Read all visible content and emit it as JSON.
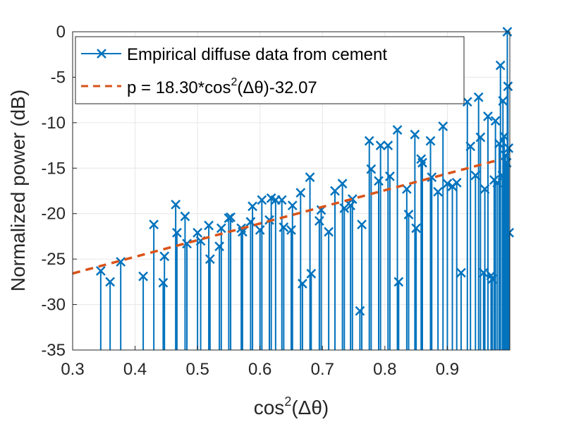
{
  "chart_data": {
    "type": "stem",
    "xlabel_prefix": "cos",
    "xlabel_sup": "2",
    "xlabel_suffix": "(Δθ)",
    "ylabel": "Normalized power (dB)",
    "xlim": [
      0.3,
      1.0
    ],
    "ylim": [
      -35,
      0
    ],
    "baseline": -35,
    "grid": true,
    "xticks": [
      0.3,
      0.4,
      0.5,
      0.6,
      0.7,
      0.8,
      0.9
    ],
    "yticks": [
      0,
      -5,
      -10,
      -15,
      -20,
      -25,
      -30,
      -35
    ],
    "xtick_labels": [
      "0.3",
      "0.4",
      "0.5",
      "0.6",
      "0.7",
      "0.8",
      "0.9"
    ],
    "ytick_labels": [
      "0",
      "-5",
      "-10",
      "-15",
      "-20",
      "-25",
      "-30",
      "-35"
    ],
    "legend": {
      "position": "top-left",
      "entries": [
        {
          "label": "Empirical diffuse data from cement"
        },
        {
          "label_prefix": "p = 18.30*cos",
          "label_sup": "2",
          "label_suffix": "(Δθ)-32.07"
        }
      ]
    },
    "series": [
      {
        "name": "Empirical diffuse data from cement",
        "style": "stem",
        "marker": "x",
        "color": "#0072BD",
        "points": [
          [
            0.345,
            -26.3
          ],
          [
            0.36,
            -27.5
          ],
          [
            0.377,
            -25.3
          ],
          [
            0.413,
            -26.9
          ],
          [
            0.43,
            -21.2
          ],
          [
            0.445,
            -27.6
          ],
          [
            0.447,
            -24.7
          ],
          [
            0.465,
            -19.0
          ],
          [
            0.467,
            -22.1
          ],
          [
            0.48,
            -20.3
          ],
          [
            0.483,
            -23.3
          ],
          [
            0.5,
            -22.1
          ],
          [
            0.505,
            -23.0
          ],
          [
            0.518,
            -21.3
          ],
          [
            0.52,
            -25.0
          ],
          [
            0.535,
            -23.6
          ],
          [
            0.538,
            -21.6
          ],
          [
            0.55,
            -20.5
          ],
          [
            0.553,
            -20.4
          ],
          [
            0.57,
            -21.6
          ],
          [
            0.572,
            -22.0
          ],
          [
            0.585,
            -20.9
          ],
          [
            0.588,
            -19.2
          ],
          [
            0.6,
            -21.8
          ],
          [
            0.603,
            -18.5
          ],
          [
            0.615,
            -20.7
          ],
          [
            0.618,
            -18.3
          ],
          [
            0.625,
            -18.5
          ],
          [
            0.635,
            -18.5
          ],
          [
            0.638,
            -21.5
          ],
          [
            0.65,
            -21.8
          ],
          [
            0.652,
            -19.1
          ],
          [
            0.665,
            -17.7
          ],
          [
            0.668,
            -27.7
          ],
          [
            0.68,
            -16.0
          ],
          [
            0.682,
            -26.6
          ],
          [
            0.695,
            -20.8
          ],
          [
            0.698,
            -19.6
          ],
          [
            0.71,
            -22.0
          ],
          [
            0.72,
            -17.5
          ],
          [
            0.732,
            -16.7
          ],
          [
            0.735,
            -19.4
          ],
          [
            0.745,
            -19.1
          ],
          [
            0.748,
            -18.4
          ],
          [
            0.76,
            -30.7
          ],
          [
            0.763,
            -21.2
          ],
          [
            0.775,
            -12.0
          ],
          [
            0.778,
            -15.1
          ],
          [
            0.79,
            -16.4
          ],
          [
            0.793,
            -12.5
          ],
          [
            0.805,
            -12.5
          ],
          [
            0.808,
            -15.9
          ],
          [
            0.82,
            -10.8
          ],
          [
            0.822,
            -27.5
          ],
          [
            0.835,
            -17.3
          ],
          [
            0.838,
            -20.1
          ],
          [
            0.848,
            -11.3
          ],
          [
            0.85,
            -21.6
          ],
          [
            0.858,
            -14.0
          ],
          [
            0.86,
            -14.4
          ],
          [
            0.873,
            -12.0
          ],
          [
            0.875,
            -16.0
          ],
          [
            0.885,
            -17.6
          ],
          [
            0.893,
            -10.4
          ],
          [
            0.9,
            -16.7
          ],
          [
            0.908,
            -17.0
          ],
          [
            0.915,
            -16.6
          ],
          [
            0.922,
            -26.5
          ],
          [
            0.932,
            -7.7
          ],
          [
            0.937,
            -12.6
          ],
          [
            0.945,
            -15.8
          ],
          [
            0.95,
            -7.2
          ],
          [
            0.953,
            -11.6
          ],
          [
            0.958,
            -26.5
          ],
          [
            0.96,
            -17.3
          ],
          [
            0.965,
            -9.3
          ],
          [
            0.97,
            -26.8
          ],
          [
            0.972,
            -27.2
          ],
          [
            0.975,
            -16.3
          ],
          [
            0.977,
            -9.8
          ],
          [
            0.98,
            -16.6
          ],
          [
            0.983,
            -12.3
          ],
          [
            0.985,
            -3.7
          ],
          [
            0.988,
            -15.8
          ],
          [
            0.989,
            -7.6
          ],
          [
            0.991,
            -11.5
          ],
          [
            0.993,
            -13.6
          ],
          [
            0.995,
            -14.4
          ],
          [
            0.996,
            0.0
          ],
          [
            0.997,
            -6.0
          ],
          [
            0.998,
            -12.8
          ],
          [
            0.999,
            -22.1
          ]
        ]
      },
      {
        "name": "p = 18.30*cos^2(Δθ)-32.07",
        "style": "dashed-line",
        "color": "#D95319",
        "slope": 18.3,
        "intercept": -32.07,
        "x_range": [
          0.3,
          0.985
        ]
      }
    ]
  }
}
